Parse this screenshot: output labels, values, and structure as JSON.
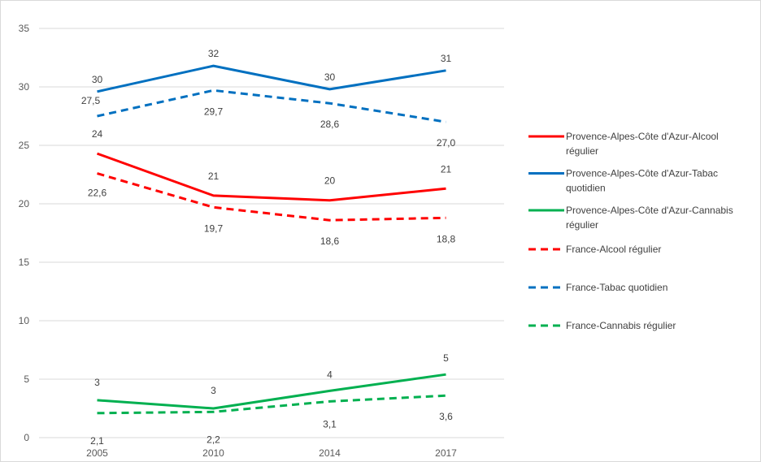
{
  "chart_data": {
    "type": "line",
    "title": "",
    "xlabel": "",
    "ylabel": "",
    "categories": [
      "2005",
      "2010",
      "2014",
      "2017"
    ],
    "ylim": [
      0,
      35
    ],
    "yticks": [
      0,
      5,
      10,
      15,
      20,
      25,
      30,
      35
    ],
    "grid": true,
    "legend_position": "right",
    "series": [
      {
        "name": "Provence-Alpes-Côte d'Azur-Alcool régulier",
        "legend_lines": [
          "Provence-Alpes-Côte d'Azur-Alcool",
          "régulier"
        ],
        "values": [
          24.3,
          20.7,
          20.3,
          21.3
        ],
        "labels": [
          "24",
          "21",
          "20",
          "21"
        ],
        "color": "#ff0000",
        "dashed": false
      },
      {
        "name": "Provence-Alpes-Côte d'Azur-Tabac quotidien",
        "legend_lines": [
          "Provence-Alpes-Côte d'Azur-Tabac",
          "quotidien"
        ],
        "values": [
          29.6,
          31.8,
          29.8,
          31.4
        ],
        "labels": [
          "30",
          "32",
          "30",
          "31"
        ],
        "color": "#0070c0",
        "dashed": false
      },
      {
        "name": "Provence-Alpes-Côte d'Azur-Cannabis régulier",
        "legend_lines": [
          "Provence-Alpes-Côte d'Azur-Cannabis",
          "régulier"
        ],
        "values": [
          3.2,
          2.5,
          4.0,
          5.4
        ],
        "labels": [
          "3",
          "3",
          "4",
          "5"
        ],
        "color": "#00b050",
        "dashed": false
      },
      {
        "name": "France-Alcool régulier",
        "legend_lines": [
          "France-Alcool régulier"
        ],
        "values": [
          22.6,
          19.7,
          18.6,
          18.8
        ],
        "labels": [
          "22,6",
          "19,7",
          "18,6",
          "18,8"
        ],
        "color": "#ff0000",
        "dashed": true
      },
      {
        "name": "France-Tabac quotidien",
        "legend_lines": [
          "France-Tabac quotidien"
        ],
        "values": [
          27.5,
          29.7,
          28.6,
          27.0
        ],
        "labels": [
          "27,5",
          "29,7",
          "28,6",
          "27,0"
        ],
        "color": "#0070c0",
        "dashed": true
      },
      {
        "name": "France-Cannabis régulier",
        "legend_lines": [
          "France-Cannabis régulier"
        ],
        "values": [
          2.1,
          2.2,
          3.1,
          3.6
        ],
        "labels": [
          "2,1",
          "2,2",
          "3,1",
          "3,6"
        ],
        "color": "#00b050",
        "dashed": true
      }
    ]
  }
}
